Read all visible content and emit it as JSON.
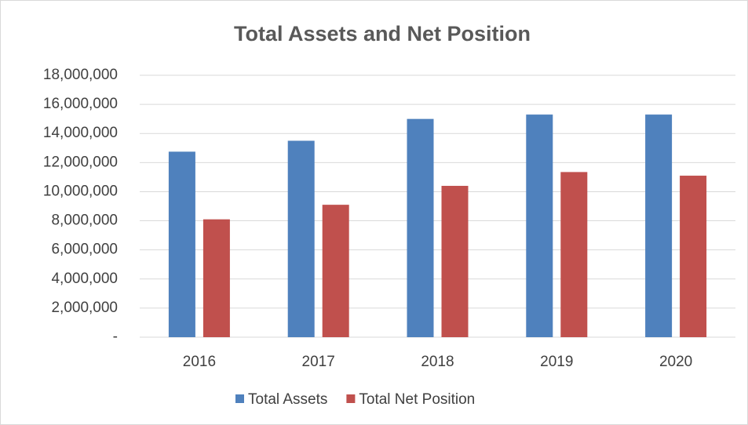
{
  "chart_data": {
    "type": "bar",
    "title": "Total Assets and Net Position",
    "categories": [
      "2016",
      "2017",
      "2018",
      "2019",
      "2020"
    ],
    "series": [
      {
        "name": "Total Assets",
        "color": "#4f81bd",
        "values": [
          12750000,
          13500000,
          15000000,
          15300000,
          15300000
        ]
      },
      {
        "name": "Total Net Position",
        "color": "#c0504d",
        "values": [
          8100000,
          9100000,
          10400000,
          11350000,
          11100000
        ]
      }
    ],
    "ylim": [
      0,
      18000000
    ],
    "yticks": [
      {
        "value": 0,
        "label": "-"
      },
      {
        "value": 2000000,
        "label": "2,000,000"
      },
      {
        "value": 4000000,
        "label": "4,000,000"
      },
      {
        "value": 6000000,
        "label": "6,000,000"
      },
      {
        "value": 8000000,
        "label": "8,000,000"
      },
      {
        "value": 10000000,
        "label": "10,000,000"
      },
      {
        "value": 12000000,
        "label": "12,000,000"
      },
      {
        "value": 14000000,
        "label": "14,000,000"
      },
      {
        "value": 16000000,
        "label": "16,000,000"
      },
      {
        "value": 18000000,
        "label": "18,000,000"
      }
    ],
    "grid": true,
    "legend": "bottom"
  }
}
